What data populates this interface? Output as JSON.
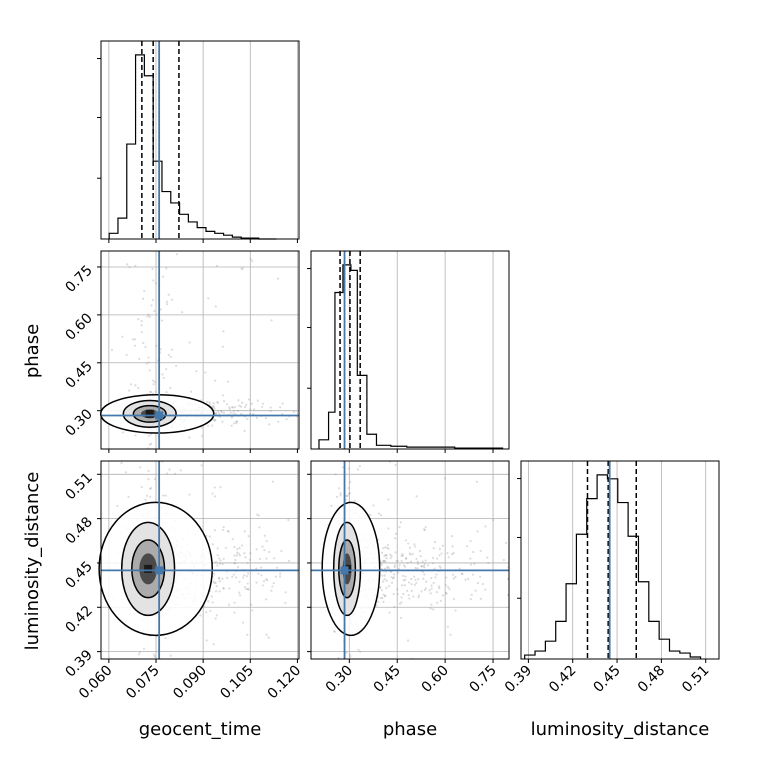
{
  "chart_data": {
    "type": "corner",
    "parameters": [
      "geocent_time",
      "phase",
      "luminosity_distance"
    ],
    "truths": {
      "geocent_time": 0.076,
      "phase": 0.285,
      "luminosity_distance": 0.445
    },
    "truth_color": "#4477aa",
    "line_color": "#000000",
    "grid": true,
    "ranges": {
      "geocent_time": [
        0.0575,
        0.1205
      ],
      "phase": [
        0.18,
        0.8
      ],
      "luminosity_distance": [
        0.385,
        0.519
      ]
    },
    "ticks": {
      "geocent_time": {
        "values": [
          0.06,
          0.075,
          0.09,
          0.105,
          0.12
        ],
        "labels": [
          "0.060",
          "0.075",
          "0.090",
          "0.105",
          "0.120"
        ]
      },
      "phase": {
        "values": [
          0.3,
          0.45,
          0.6,
          0.75
        ],
        "labels": [
          "0.30",
          "0.45",
          "0.60",
          "0.75"
        ]
      },
      "luminosity_distance": {
        "values": [
          0.39,
          0.42,
          0.45,
          0.48,
          0.51
        ],
        "labels": [
          "0.39",
          "0.42",
          "0.45",
          "0.48",
          "0.51"
        ]
      }
    },
    "histograms": {
      "geocent_time": {
        "bins": [
          0.0601,
          0.0629,
          0.0657,
          0.0685,
          0.0713,
          0.0741,
          0.0769,
          0.0797,
          0.0825,
          0.0853,
          0.0881,
          0.0909,
          0.0937,
          0.0965,
          0.0993,
          0.1021,
          0.1049,
          0.1077,
          0.1105,
          0.1133
        ],
        "counts": [
          0.03,
          0.11,
          0.5,
          0.97,
          0.86,
          0.41,
          0.25,
          0.19,
          0.13,
          0.09,
          0.06,
          0.04,
          0.03,
          0.02,
          0.01,
          0.005,
          0.005,
          0.0,
          0.0
        ],
        "quantiles": [
          0.0705,
          0.0741,
          0.0823
        ]
      },
      "phase": {
        "bins": [
          0.205,
          0.235,
          0.255,
          0.28,
          0.305,
          0.325,
          0.355,
          0.385,
          0.43,
          0.48,
          0.53,
          0.58,
          0.63,
          0.68,
          0.73,
          0.78
        ],
        "counts": [
          0.05,
          0.2,
          0.85,
          1.0,
          0.97,
          0.4,
          0.08,
          0.02,
          0.015,
          0.01,
          0.01,
          0.01,
          0.005,
          0.005,
          0.005
        ],
        "quantiles": [
          0.271,
          0.302,
          0.334
        ]
      },
      "luminosity_distance": {
        "bins": [
          0.3875,
          0.3945,
          0.4015,
          0.4085,
          0.4155,
          0.4225,
          0.4295,
          0.4365,
          0.4435,
          0.4505,
          0.4575,
          0.4645,
          0.4715,
          0.4785,
          0.4855,
          0.4925,
          0.4995,
          0.5065
        ],
        "counts": [
          0.02,
          0.04,
          0.09,
          0.19,
          0.38,
          0.63,
          0.81,
          0.93,
          0.91,
          0.79,
          0.62,
          0.39,
          0.19,
          0.1,
          0.04,
          0.03,
          0.01
        ],
        "quantiles": [
          0.43,
          0.444,
          0.463
        ]
      }
    },
    "scatter_panels": [
      {
        "x": "geocent_time",
        "y": "phase",
        "center": [
          0.073,
          0.29
        ],
        "spread": [
          0.004,
          0.02
        ],
        "tail": [
          0.12,
          0.31
        ]
      },
      {
        "x": "geocent_time",
        "y": "luminosity_distance",
        "center": [
          0.0725,
          0.446
        ],
        "spread": [
          0.004,
          0.015
        ],
        "tail": [
          0.12,
          0.446
        ]
      },
      {
        "x": "phase",
        "y": "luminosity_distance",
        "center": [
          0.293,
          0.446
        ],
        "spread": [
          0.02,
          0.015
        ],
        "tail": [
          0.78,
          0.446
        ]
      }
    ]
  }
}
